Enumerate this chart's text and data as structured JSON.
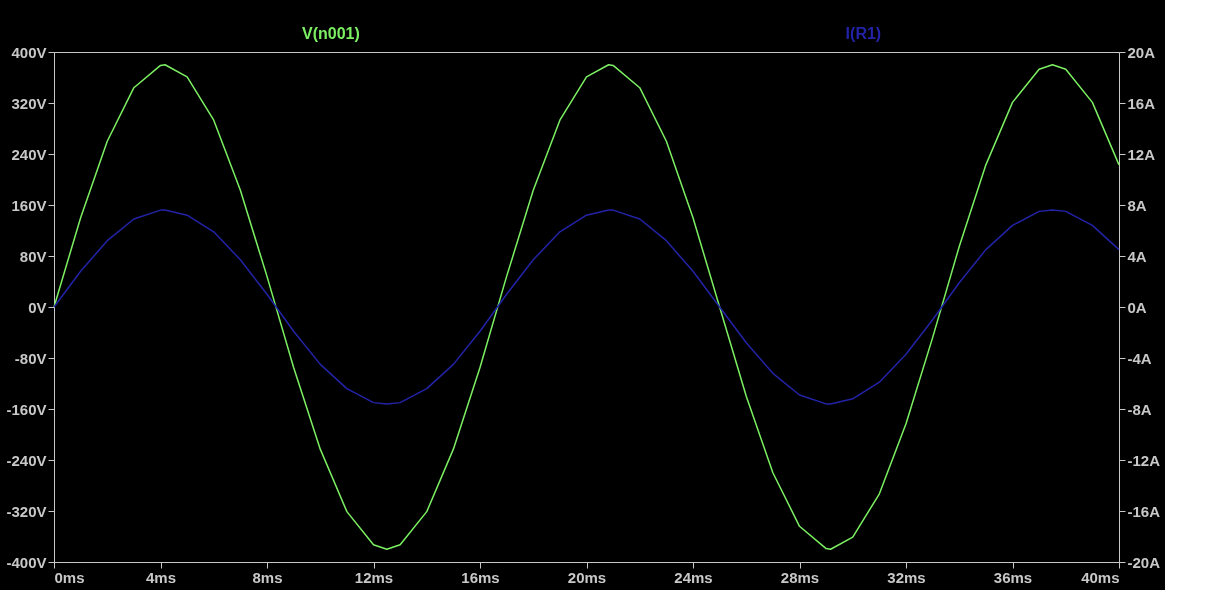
{
  "chart_data": {
    "type": "line",
    "x": [
      0,
      1,
      2,
      3,
      4,
      4.17,
      5,
      6,
      7,
      8,
      9,
      10,
      11,
      12,
      12.5,
      13,
      14,
      15,
      16,
      17,
      18,
      19,
      20,
      20.83,
      21,
      22,
      23,
      24,
      25,
      26,
      27,
      28,
      29,
      29.17,
      30,
      31,
      32,
      33,
      34,
      35,
      36,
      37,
      37.5,
      38,
      39,
      40
    ],
    "series": [
      {
        "name": "V(n001)",
        "color": "#7cf062",
        "values": [
          0,
          140,
          260,
          344,
          379,
          380,
          361,
          293,
          183,
          48,
          -95,
          -223,
          -321,
          -373,
          -380,
          -373,
          -321,
          -223,
          -95,
          48,
          183,
          293,
          361,
          380,
          379,
          344,
          260,
          140,
          0,
          -140,
          -260,
          -344,
          -379,
          -380,
          -361,
          -293,
          -183,
          -48,
          95,
          223,
          321,
          373,
          380,
          373,
          321,
          223
        ]
      },
      {
        "name": "I(R1)",
        "color": "#2323a8",
        "axis": "y2",
        "values": [
          0,
          2.8,
          5.2,
          6.9,
          7.6,
          7.6,
          7.2,
          5.9,
          3.7,
          1.0,
          -1.9,
          -4.5,
          -6.4,
          -7.5,
          -7.6,
          -7.5,
          -6.4,
          -4.5,
          -1.9,
          1.0,
          3.7,
          5.9,
          7.2,
          7.6,
          7.6,
          6.9,
          5.2,
          2.8,
          0,
          -2.8,
          -5.2,
          -6.9,
          -7.6,
          -7.6,
          -7.2,
          -5.9,
          -3.7,
          -1.0,
          1.9,
          4.5,
          6.4,
          7.5,
          7.6,
          7.5,
          6.4,
          4.5
        ]
      }
    ],
    "xlim": [
      0,
      40
    ],
    "xticks": [
      {
        "value": 0,
        "label": "0ms"
      },
      {
        "value": 4,
        "label": "4ms"
      },
      {
        "value": 8,
        "label": "8ms"
      },
      {
        "value": 12,
        "label": "12ms"
      },
      {
        "value": 16,
        "label": "16ms"
      },
      {
        "value": 20,
        "label": "20ms"
      },
      {
        "value": 24,
        "label": "24ms"
      },
      {
        "value": 28,
        "label": "28ms"
      },
      {
        "value": 32,
        "label": "32ms"
      },
      {
        "value": 36,
        "label": "36ms"
      },
      {
        "value": 40,
        "label": "40ms"
      }
    ],
    "ylim": [
      -400,
      400
    ],
    "yticks": [
      {
        "value": -400,
        "label": "-400V"
      },
      {
        "value": -320,
        "label": "-320V"
      },
      {
        "value": -240,
        "label": "-240V"
      },
      {
        "value": -160,
        "label": "-160V"
      },
      {
        "value": -80,
        "label": "-80V"
      },
      {
        "value": 0,
        "label": "0V"
      },
      {
        "value": 80,
        "label": "80V"
      },
      {
        "value": 160,
        "label": "160V"
      },
      {
        "value": 240,
        "label": "240V"
      },
      {
        "value": 320,
        "label": "320V"
      },
      {
        "value": 400,
        "label": "400V"
      }
    ],
    "y2lim": [
      -20,
      20
    ],
    "y2ticks": [
      {
        "value": -20,
        "label": "-20A"
      },
      {
        "value": -16,
        "label": "-16A"
      },
      {
        "value": -12,
        "label": "-12A"
      },
      {
        "value": -8,
        "label": "-8A"
      },
      {
        "value": -4,
        "label": "-4A"
      },
      {
        "value": 0,
        "label": "0A"
      },
      {
        "value": 4,
        "label": "4A"
      },
      {
        "value": 8,
        "label": "8A"
      },
      {
        "value": 12,
        "label": "12A"
      },
      {
        "value": 16,
        "label": "16A"
      },
      {
        "value": 20,
        "label": "20A"
      }
    ],
    "grid": false,
    "legend": "top",
    "marker": "none",
    "line_style": "solid"
  }
}
